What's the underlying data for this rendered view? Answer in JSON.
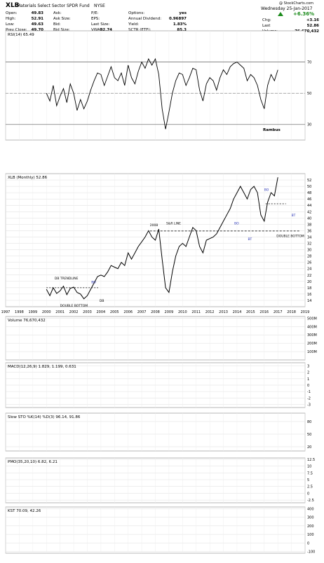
{
  "header": {
    "symbol": "XLB",
    "name": "Materials Select Sector SPDR Fund",
    "exchange": "NYSE",
    "credit": "@ StockCharts.com",
    "date": "Wednesday 25-Jan-2017",
    "change_pct": "+6.36%",
    "fields_left": [
      [
        "Open:",
        "49.83"
      ],
      [
        "High:",
        "52.91"
      ],
      [
        "Low:",
        "49.63"
      ],
      [
        "Prev Close:",
        "49.70"
      ]
    ],
    "fields_mid": [
      [
        "Ask:",
        ""
      ],
      [
        "Ask Size:",
        ""
      ],
      [
        "Bid:",
        ""
      ],
      [
        "Bid Size:",
        ""
      ]
    ],
    "fields_mid2": [
      [
        "P/E:",
        ""
      ],
      [
        "EPS:",
        ""
      ],
      [
        "Last Size:",
        ""
      ],
      [
        "VWAP:",
        "52.74"
      ]
    ],
    "fields_opt": [
      [
        "Options:",
        "yes"
      ],
      [
        "Annual Dividend:",
        "0.96897"
      ],
      [
        "Yield:",
        "1.83%"
      ],
      [
        "SCTR (ETF):",
        "85.3"
      ]
    ],
    "fields_right": [
      [
        "Chg:",
        "+3.16"
      ],
      [
        "Last",
        "52.86"
      ],
      [
        "Volume:",
        "76,670,432"
      ]
    ]
  },
  "colors": {
    "price": "#000000",
    "volume_up": "#d94a4a",
    "volume_down": "#777777",
    "macd_signal": "#e03030",
    "macd_hist": "#3a9bc8",
    "sto_d": "#e03030",
    "pmo_signal": "#e03030",
    "kst_signal": "#e03030",
    "annot_box": "#2a35b8",
    "rsi_fill_high": "#3c8a3c",
    "rsi_fill_low": "#c24a4a"
  },
  "chart_data": [
    {
      "type": "line",
      "panel": "rsi",
      "title": "RSI(14) 65.49",
      "ylim": [
        20,
        90
      ],
      "yticks": [
        30,
        50,
        70
      ],
      "annotation": "Rambus",
      "series": [
        {
          "x": [
            2000.0,
            2000.25,
            2000.5,
            2000.75,
            2001.0,
            2001.25,
            2001.5,
            2001.75,
            2002.0,
            2002.25,
            2002.5,
            2002.75,
            2003.0,
            2003.25,
            2003.5,
            2003.75,
            2004.0,
            2004.25,
            2004.5,
            2004.75,
            2005.0,
            2005.25,
            2005.5,
            2005.75,
            2006.0,
            2006.25,
            2006.5,
            2006.75,
            2007.0,
            2007.25,
            2007.5,
            2007.75,
            2008.0,
            2008.25,
            2008.5,
            2008.75,
            2009.0,
            2009.25,
            2009.5,
            2009.75,
            2010.0,
            2010.25,
            2010.5,
            2010.75,
            2011.0,
            2011.25,
            2011.5,
            2011.75,
            2012.0,
            2012.25,
            2012.5,
            2012.75,
            2013.0,
            2013.25,
            2013.5,
            2013.75,
            2014.0,
            2014.25,
            2014.5,
            2014.75,
            2015.0,
            2015.25,
            2015.5,
            2015.75,
            2016.0,
            2016.25,
            2016.5,
            2016.75,
            2017.0
          ],
          "values": [
            50,
            45,
            55,
            42,
            48,
            53,
            44,
            56,
            50,
            39,
            46,
            40,
            45,
            52,
            58,
            63,
            62,
            55,
            61,
            67,
            60,
            58,
            63,
            55,
            68,
            60,
            56,
            64,
            70,
            66,
            72,
            68,
            72,
            62,
            40,
            27,
            38,
            50,
            58,
            63,
            62,
            55,
            60,
            66,
            65,
            52,
            45,
            56,
            60,
            58,
            52,
            60,
            65,
            62,
            67,
            69,
            70,
            68,
            66,
            58,
            62,
            60,
            55,
            46,
            40,
            55,
            62,
            58,
            65
          ]
        }
      ]
    },
    {
      "type": "line",
      "panel": "price",
      "title": "XLB (Monthly) 52.86",
      "ylim": [
        12,
        54
      ],
      "yticks": [
        14,
        16,
        18,
        20,
        22,
        24,
        26,
        28,
        30,
        32,
        34,
        36,
        38,
        40,
        42,
        44,
        46,
        48,
        50,
        52
      ],
      "xticks": [
        1997,
        1998,
        1999,
        2000,
        2001,
        2002,
        2003,
        2004,
        2005,
        2006,
        2007,
        2008,
        2009,
        2010,
        2011,
        2012,
        2013,
        2014,
        2015,
        2016,
        2017,
        2018,
        2019
      ],
      "annotations": [
        "DB TRENDLINE",
        "BO",
        "DB",
        "DOUBLE BOTTOM",
        "2008",
        "S&R LINE",
        "BO",
        "BT",
        "BO",
        "BT",
        "DOUBLE BOTTOM"
      ],
      "series": [
        {
          "x": [
            2000.0,
            2000.25,
            2000.5,
            2000.75,
            2001.0,
            2001.25,
            2001.5,
            2001.75,
            2002.0,
            2002.25,
            2002.5,
            2002.75,
            2003.0,
            2003.25,
            2003.5,
            2003.75,
            2004.0,
            2004.25,
            2004.5,
            2004.75,
            2005.0,
            2005.25,
            2005.5,
            2005.75,
            2006.0,
            2006.25,
            2006.5,
            2006.75,
            2007.0,
            2007.25,
            2007.5,
            2007.75,
            2008.0,
            2008.25,
            2008.5,
            2008.75,
            2009.0,
            2009.25,
            2009.5,
            2009.75,
            2010.0,
            2010.25,
            2010.5,
            2010.75,
            2011.0,
            2011.25,
            2011.5,
            2011.75,
            2012.0,
            2012.25,
            2012.5,
            2012.75,
            2013.0,
            2013.25,
            2013.5,
            2013.75,
            2014.0,
            2014.25,
            2014.5,
            2014.75,
            2015.0,
            2015.25,
            2015.5,
            2015.75,
            2016.0,
            2016.25,
            2016.5,
            2016.75,
            2017.0
          ],
          "values": [
            17.5,
            15.5,
            18.0,
            16.2,
            17.0,
            18.5,
            15.8,
            17.8,
            18.2,
            16.5,
            16.0,
            14.5,
            15.5,
            17.5,
            19.5,
            21.5,
            22.0,
            21.5,
            23.0,
            25.0,
            24.5,
            24.0,
            26.0,
            25.0,
            29.0,
            27.0,
            29.0,
            31.0,
            32.5,
            34.0,
            36.0,
            34.0,
            33.0,
            36.5,
            27.0,
            18.0,
            16.5,
            23.0,
            28.0,
            31.0,
            32.0,
            31.0,
            34.0,
            37.0,
            36.0,
            31.0,
            29.0,
            33.0,
            33.5,
            34.0,
            35.0,
            37.0,
            39.0,
            41.0,
            43.0,
            46.0,
            48.0,
            50.0,
            48.0,
            46.0,
            49.0,
            50.0,
            48.0,
            41.0,
            39.0,
            45.0,
            48.0,
            47.0,
            52.86
          ]
        }
      ]
    },
    {
      "type": "bar",
      "panel": "volume",
      "title": "Volume 76,670,432",
      "ylim": [
        0,
        520
      ],
      "yticks": [
        100,
        200,
        300,
        400,
        500
      ],
      "tick_unit": "M"
    },
    {
      "type": "line",
      "panel": "macd",
      "title": "MACD(12,26,9) 1.829, 1.199, 0.631",
      "ylim": [
        -3.5,
        3.5
      ],
      "yticks": [
        -3,
        -2,
        -1,
        0,
        1,
        2,
        3
      ]
    },
    {
      "type": "line",
      "panel": "sto",
      "title": "Slow STO %K(14) %D(3) 96.14, 91.86",
      "ylim": [
        10,
        100
      ],
      "yticks": [
        20,
        50,
        80
      ]
    },
    {
      "type": "line",
      "panel": "pmo",
      "title": "PMO(35,20,10) 6.82, 6.21",
      "ylim": [
        -3.5,
        13
      ],
      "yticks": [
        -2.5,
        0.0,
        2.5,
        5.0,
        7.5,
        10.0,
        12.5
      ]
    },
    {
      "type": "line",
      "panel": "kst",
      "title": "KST 70.09, 42.26",
      "ylim": [
        -120,
        420
      ],
      "yticks": [
        -100,
        0,
        100,
        200,
        300,
        400
      ]
    }
  ]
}
